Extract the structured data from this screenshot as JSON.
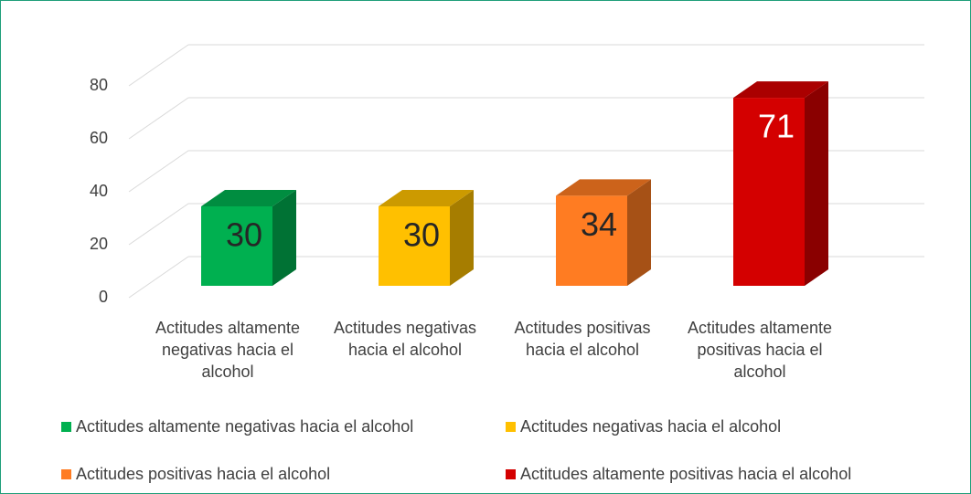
{
  "chart_data": {
    "type": "bar3d",
    "categories": [
      "Actitudes altamente negativas hacia el alcohol",
      "Actitudes negativas hacia el alcohol",
      "Actitudes positivas hacia el alcohol",
      "Actitudes altamente positivas hacia el alcohol"
    ],
    "values": [
      30,
      30,
      34,
      71
    ],
    "colors": [
      "#00b050",
      "#ffc000",
      "#ff7c22",
      "#d40000"
    ],
    "ylim": [
      0,
      80
    ],
    "yticks": [
      0,
      20,
      40,
      60,
      80
    ],
    "grid": true,
    "legend": "bottom"
  }
}
